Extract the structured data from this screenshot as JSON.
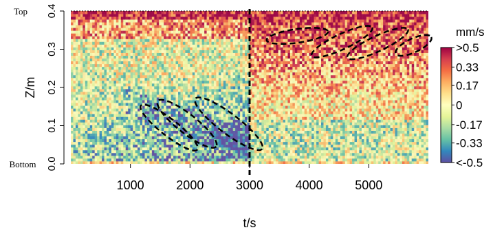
{
  "chart_data": {
    "type": "heatmap",
    "xlabel": "t/s",
    "ylabel": "Z/m",
    "xlim": [
      0,
      6000
    ],
    "ylim": [
      0,
      0.4
    ],
    "x_ticks": [
      1000,
      2000,
      3000,
      4000,
      5000
    ],
    "y_ticks": [
      0.0,
      0.1,
      0.2,
      0.3,
      0.4
    ],
    "y_tick_labels": [
      "0.0",
      "0.1",
      "0.2",
      "0.3",
      "0.4"
    ],
    "y_extra_labels": {
      "top": "Top",
      "bottom": "Bottom"
    },
    "top_boundary_z": 0.4,
    "bold_dashed_vertical_x": 3000,
    "colorbar": {
      "title": "mm/s",
      "labels": [
        ">0.5",
        "0.33",
        "0.17",
        "0",
        "-0.17",
        "-0.33",
        "<-0.5"
      ],
      "values": [
        0.5,
        0.33,
        0.17,
        0,
        -0.17,
        -0.33,
        -0.5
      ],
      "colors": [
        "#9e0142",
        "#d53e4f",
        "#f46d43",
        "#fdae61",
        "#fee08b",
        "#ffffbf",
        "#e6f598",
        "#abdda4",
        "#66c2a5",
        "#3288bd",
        "#5e4fa2"
      ]
    },
    "annotations": {
      "style": "black dashed ellipses",
      "ellipses": [
        {
          "cx": 1650,
          "cy": 0.095,
          "t_half": 600,
          "z_half": 0.022,
          "angle_deg": 38
        },
        {
          "cx": 1950,
          "cy": 0.105,
          "t_half": 620,
          "z_half": 0.025,
          "angle_deg": 38
        },
        {
          "cx": 2650,
          "cy": 0.105,
          "t_half": 700,
          "z_half": 0.026,
          "angle_deg": 37
        },
        {
          "cx": 3800,
          "cy": 0.335,
          "t_half": 520,
          "z_half": 0.018,
          "angle_deg": -8
        },
        {
          "cx": 4550,
          "cy": 0.32,
          "t_half": 560,
          "z_half": 0.02,
          "angle_deg": -25
        },
        {
          "cx": 5150,
          "cy": 0.315,
          "t_half": 560,
          "z_half": 0.02,
          "angle_deg": -25
        },
        {
          "cx": 5750,
          "cy": 0.31,
          "t_half": 330,
          "z_half": 0.018,
          "angle_deg": -25
        }
      ]
    }
  }
}
